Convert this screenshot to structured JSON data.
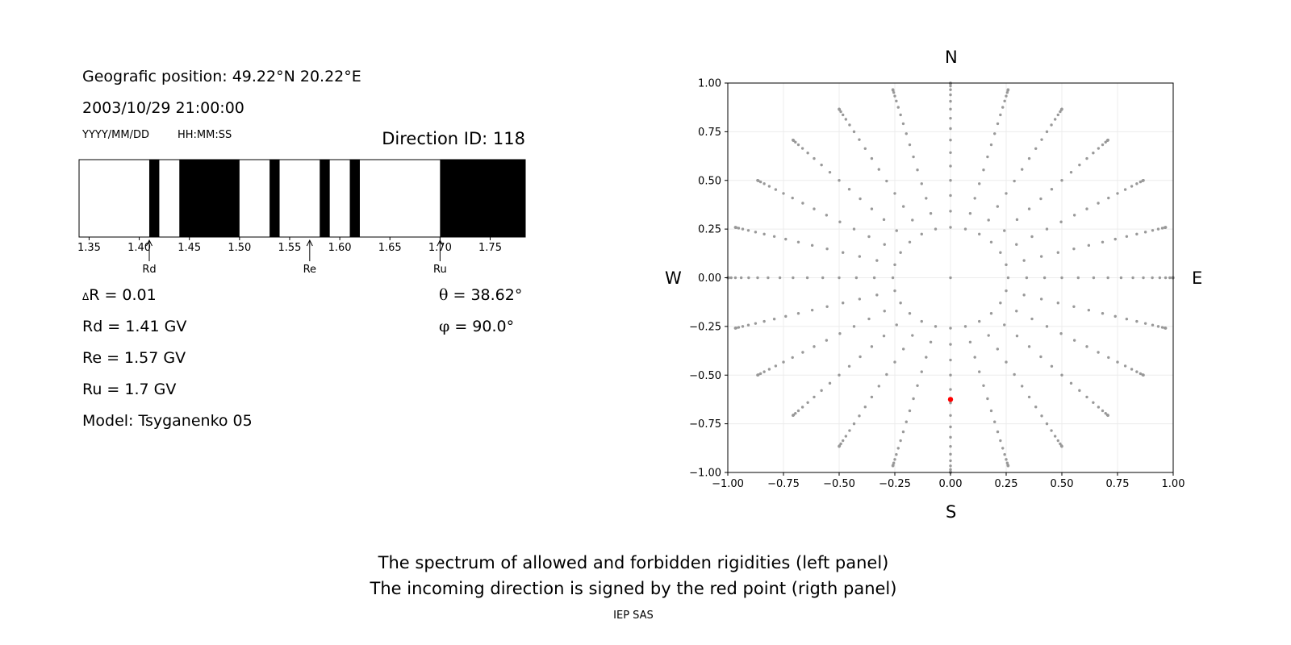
{
  "left_panel": {
    "position_text": "Geografic position: 49.22°N 20.22°E",
    "datetime_text": "2003/10/29 21:00:00",
    "date_format_label": "YYYY/MM/DD",
    "time_format_label": "HH:MM:SS",
    "direction_id_text": "Direction ID: 118",
    "delta_r_symbol": "Δ",
    "delta_r_text": "R = 0.01",
    "rd_text": "Rd = 1.41 GV",
    "re_text": "Re = 1.57 GV",
    "ru_text": "Ru = 1.7 GV",
    "model_text": "Model: Tsyganenko 05",
    "theta_symbol": "θ",
    "theta_text": " = 38.62°",
    "phi_symbol": "φ",
    "phi_text": " = 90.0°"
  },
  "right_panel": {
    "north_label": "N",
    "south_label": "S",
    "west_label": "W",
    "east_label": "E"
  },
  "caption": {
    "line1": "The spectrum of allowed and forbidden rigidities (left panel)",
    "line2": "The incoming direction is signed by the red point (rigth panel)",
    "credit": "IEP SAS"
  },
  "chart_data": [
    {
      "type": "bar",
      "subtype": "rigidity-spectrum",
      "xlim": [
        1.34,
        1.785
      ],
      "x_ticks": [
        "1.35",
        "1.40",
        "1.45",
        "1.50",
        "1.55",
        "1.60",
        "1.65",
        "1.70",
        "1.75"
      ],
      "x_tick_values": [
        1.35,
        1.4,
        1.45,
        1.5,
        1.55,
        1.6,
        1.65,
        1.7,
        1.75
      ],
      "forbidden_bands": [
        [
          1.41,
          1.42
        ],
        [
          1.44,
          1.5
        ],
        [
          1.53,
          1.54
        ],
        [
          1.58,
          1.59
        ],
        [
          1.61,
          1.62
        ],
        [
          1.7,
          1.785
        ]
      ],
      "markers": [
        {
          "label": "Rd",
          "value": 1.41
        },
        {
          "label": "Re",
          "value": 1.57
        },
        {
          "label": "Ru",
          "value": 1.7
        }
      ],
      "colors": {
        "forbidden": "#000000",
        "allowed": "#ffffff"
      }
    },
    {
      "type": "scatter",
      "subtype": "direction-grid",
      "xlim": [
        -1.0,
        1.0
      ],
      "ylim": [
        -1.0,
        1.0
      ],
      "x_ticks": [
        "−1.00",
        "−0.75",
        "−0.50",
        "−0.25",
        "0.00",
        "0.25",
        "0.50",
        "0.75",
        "1.00"
      ],
      "y_ticks": [
        "−1.00",
        "−0.75",
        "−0.50",
        "−0.25",
        "0.00",
        "0.25",
        "0.50",
        "0.75",
        "1.00"
      ],
      "tick_values": [
        -1.0,
        -0.75,
        -0.5,
        -0.25,
        0.0,
        0.25,
        0.5,
        0.75,
        1.0
      ],
      "grid": true,
      "grid_definition": {
        "center": [
          0,
          0
        ],
        "zenith_step_deg": 5,
        "zenith_max_deg": 85,
        "inner_ring_zenith_deg": 15,
        "inner_ring_azimuth_step_deg": 15,
        "outer_azimuth_step_deg": 15,
        "spoke_length": 1.0
      },
      "highlight_point": {
        "x": 0.0,
        "y": -0.625
      },
      "colors": {
        "grid_points": "#999999",
        "highlight": "#ff0000"
      }
    }
  ]
}
